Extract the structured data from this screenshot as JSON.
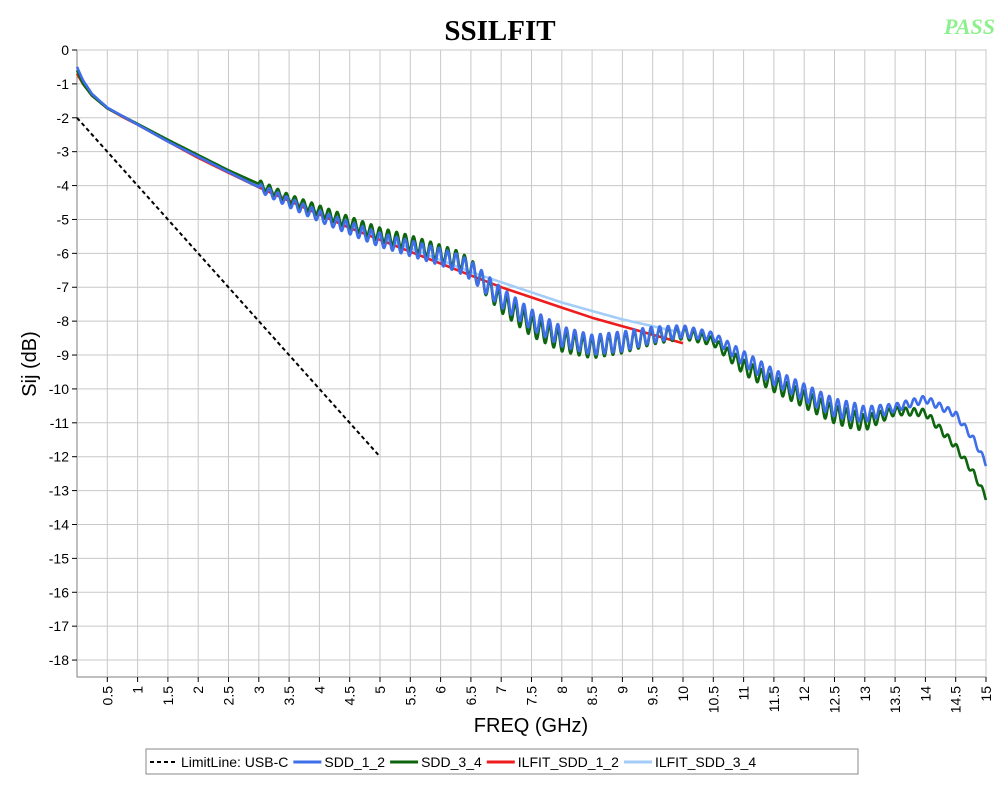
{
  "header": {
    "title": "SSILFIT",
    "status": "PASS",
    "status_color": "#8cf08c"
  },
  "chart_data": {
    "type": "line",
    "title": "SSILFIT",
    "xlabel": "FREQ (GHz)",
    "ylabel": "Sij  (dB)",
    "xlim": [
      0,
      15
    ],
    "ylim": [
      -18.5,
      0
    ],
    "x_ticks": [
      "0.5",
      "1",
      "1.5",
      "2",
      "2.5",
      "3",
      "3.5",
      "4",
      "4.5",
      "5",
      "5.5",
      "6",
      "6.5",
      "7",
      "7.5",
      "8",
      "8.5",
      "9",
      "9.5",
      "10",
      "10.5",
      "11",
      "11.5",
      "12",
      "12.5",
      "13",
      "13.5",
      "14",
      "14.5",
      "15"
    ],
    "y_ticks": [
      "0",
      "-1",
      "-2",
      "-3",
      "-4",
      "-5",
      "-6",
      "-7",
      "-8",
      "-9",
      "-10",
      "-11",
      "-12",
      "-13",
      "-14",
      "-15",
      "-16",
      "-17",
      "-18"
    ],
    "grid": true,
    "legend_position": "bottom",
    "series": [
      {
        "name": "LimitLine: USB-C",
        "color": "#000000",
        "dashed": true,
        "x": [
          0,
          5
        ],
        "y": [
          -2,
          -12
        ]
      },
      {
        "name": "SDD_1_2",
        "color": "#3f6fe8",
        "ripple": {
          "start": 3,
          "end": 15,
          "period": 0.14,
          "amps": [
            [
              3,
              0.12
            ],
            [
              7,
              0.3
            ],
            [
              9,
              0.3
            ],
            [
              10.5,
              0.12
            ],
            [
              11,
              0.22
            ],
            [
              12.8,
              0.28
            ],
            [
              13.5,
              0.12
            ],
            [
              15,
              0.08
            ]
          ]
        },
        "x": [
          0,
          0.1,
          0.25,
          0.5,
          0.75,
          1,
          1.5,
          2,
          2.5,
          3,
          3.5,
          4,
          4.5,
          5,
          5.5,
          6,
          6.3,
          6.5,
          7,
          7.5,
          8,
          8.5,
          9,
          9.5,
          10,
          10.5,
          11,
          11.5,
          12,
          12.5,
          13,
          13.5,
          14,
          14.5,
          14.8,
          15
        ],
        "y": [
          -0.5,
          -0.9,
          -1.3,
          -1.7,
          -1.95,
          -2.2,
          -2.7,
          -3.15,
          -3.6,
          -4.05,
          -4.5,
          -4.9,
          -5.25,
          -5.6,
          -5.85,
          -6.1,
          -6.3,
          -6.5,
          -7.3,
          -7.95,
          -8.45,
          -8.7,
          -8.6,
          -8.4,
          -8.3,
          -8.45,
          -9.1,
          -9.65,
          -10.1,
          -10.55,
          -10.75,
          -10.55,
          -10.3,
          -10.75,
          -11.5,
          -12.2
        ]
      },
      {
        "name": "SDD_3_4",
        "color": "#0d650d",
        "ripple": {
          "start": 3,
          "end": 15,
          "period": 0.14,
          "amps": [
            [
              3,
              0.12
            ],
            [
              7,
              0.3
            ],
            [
              9,
              0.3
            ],
            [
              10.5,
              0.12
            ],
            [
              11,
              0.22
            ],
            [
              12.8,
              0.28
            ],
            [
              13.5,
              0.12
            ],
            [
              15,
              0.08
            ]
          ]
        },
        "x": [
          0,
          0.1,
          0.25,
          0.5,
          0.75,
          1,
          1.5,
          2,
          2.5,
          3,
          3.5,
          4,
          4.5,
          5,
          5.5,
          6,
          6.3,
          6.5,
          7,
          7.5,
          8,
          8.5,
          9,
          9.5,
          10,
          10.5,
          11,
          11.5,
          12,
          12.5,
          13,
          13.5,
          14,
          14.5,
          14.8,
          15
        ],
        "y": [
          -0.6,
          -1.0,
          -1.35,
          -1.72,
          -1.95,
          -2.18,
          -2.65,
          -3.1,
          -3.55,
          -3.95,
          -4.4,
          -4.75,
          -5.1,
          -5.45,
          -5.7,
          -6.0,
          -6.2,
          -6.45,
          -7.45,
          -8.15,
          -8.6,
          -8.8,
          -8.65,
          -8.45,
          -8.35,
          -8.6,
          -9.35,
          -9.85,
          -10.3,
          -10.75,
          -11.0,
          -10.65,
          -10.7,
          -11.7,
          -12.5,
          -13.2
        ]
      },
      {
        "name": "ILFIT_SDD_1_2",
        "color": "#ee1c1c",
        "x": [
          0,
          0.1,
          0.25,
          0.5,
          0.75,
          1,
          1.5,
          2,
          2.5,
          3,
          3.5,
          4,
          4.5,
          5,
          5.5,
          6,
          6.5,
          7,
          7.5,
          8,
          8.5,
          9,
          9.5,
          10
        ],
        "y": [
          -0.7,
          -1.0,
          -1.35,
          -1.72,
          -1.97,
          -2.2,
          -2.7,
          -3.18,
          -3.62,
          -4.05,
          -4.45,
          -4.85,
          -5.25,
          -5.6,
          -5.95,
          -6.3,
          -6.65,
          -7.0,
          -7.3,
          -7.6,
          -7.9,
          -8.15,
          -8.4,
          -8.65
        ]
      },
      {
        "name": "ILFIT_SDD_3_4",
        "color": "#a3cdf7",
        "x": [
          0,
          0.1,
          0.25,
          0.5,
          0.75,
          1,
          1.5,
          2,
          2.5,
          3,
          3.5,
          4,
          4.5,
          5,
          5.5,
          6,
          6.5,
          7,
          7.5,
          8,
          8.5,
          9,
          9.5,
          10
        ],
        "y": [
          -0.7,
          -1.0,
          -1.35,
          -1.72,
          -1.97,
          -2.2,
          -2.68,
          -3.15,
          -3.58,
          -4.0,
          -4.4,
          -4.8,
          -5.17,
          -5.52,
          -5.85,
          -6.2,
          -6.55,
          -6.85,
          -7.15,
          -7.45,
          -7.7,
          -7.95,
          -8.15,
          -8.35
        ]
      }
    ]
  }
}
